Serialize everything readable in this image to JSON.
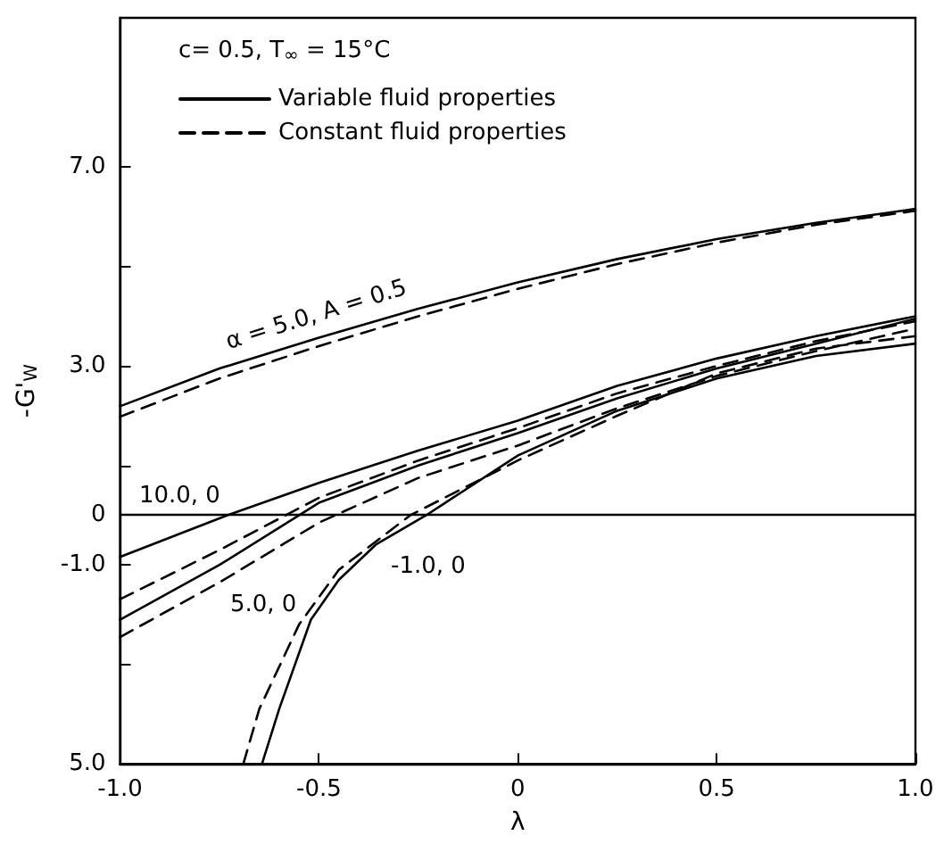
{
  "chart_data": {
    "type": "line",
    "xlabel": "λ",
    "ylabel": "-G'$_{W}$",
    "xlim": [
      -1,
      1
    ],
    "xticks": [
      {
        "value": -1,
        "label": "-1.0"
      },
      {
        "value": -0.5,
        "label": "-0.5"
      },
      0,
      0.5,
      {
        "value": 1,
        "label": "1.0"
      }
    ],
    "ylim": [
      -5,
      10
    ],
    "yticks": [
      {
        "value": 7,
        "label": "7.0"
      },
      {
        "value": 5,
        "label": null
      },
      {
        "value": 3,
        "label": "3.0"
      },
      {
        "value": 1,
        "label": null
      },
      0,
      {
        "value": -1,
        "label": "-1.0"
      },
      {
        "value": -3,
        "label": null
      },
      {
        "value": -5,
        "label": "5.0"
      }
    ],
    "grid": false,
    "legend": "top left",
    "marker": "none",
    "ref_lines": [
      {
        "axis": "y",
        "value": 0,
        "color": "#000000"
      }
    ],
    "annotations": [
      "c= 0.5, T$_{∞}$ = 15°C",
      {
        "text": "α = 5.0, A = 0.5",
        "x": -0.75,
        "y": 2.95
      },
      {
        "text": "10.0, 0",
        "x": -0.73,
        "y": 0
      },
      {
        "text": "5.0, 0",
        "x": -0.75,
        "y": -1.35
      },
      {
        "text": "-1.0, 0",
        "x": -0.355,
        "y": -0.58
      }
    ],
    "series": [
      {
        "name": "Variable fluid properties",
        "color": "#000000",
        "line_style": "solid",
        "x": [
          -1,
          -0.75,
          -0.5,
          -0.25,
          0,
          0.25,
          0.5,
          0.75,
          1
        ],
        "values": [
          2.19,
          2.95,
          3.57,
          4.15,
          4.68,
          5.15,
          5.55,
          5.88,
          6.16
        ]
      },
      {
        "name": "Constant fluid properties",
        "color": "#000000",
        "line_style": "dashed",
        "x": [
          -1,
          -0.75,
          -0.5,
          -0.25,
          0,
          0.25,
          0.5,
          0.75,
          1
        ],
        "values": [
          1.98,
          2.75,
          3.4,
          4.0,
          4.55,
          5.05,
          5.48,
          5.84,
          6.12
        ]
      },
      {
        "color": "#000000",
        "line_style": "solid",
        "x": [
          -1,
          -0.73,
          -0.5,
          -0.25,
          0,
          0.25,
          0.5,
          0.75,
          1
        ],
        "values": [
          -0.84,
          0,
          0.65,
          1.3,
          1.9,
          2.6,
          3.15,
          3.6,
          4.0
        ]
      },
      {
        "color": "#000000",
        "line_style": "dashed",
        "x": [
          -1,
          -0.75,
          -0.5,
          -0.25,
          0,
          0.25,
          0.5,
          0.75,
          1
        ],
        "values": [
          -1.69,
          -0.7,
          0.35,
          1.1,
          1.75,
          2.45,
          3.0,
          3.5,
          3.9
        ]
      },
      {
        "color": "#000000",
        "line_style": "solid",
        "x": [
          -1,
          -0.75,
          -0.5,
          -0.25,
          0,
          0.25,
          0.5,
          0.75,
          1
        ],
        "values": [
          -2.1,
          -1.0,
          0.25,
          1.0,
          1.65,
          2.35,
          2.95,
          3.45,
          3.95
        ]
      },
      {
        "color": "#000000",
        "line_style": "dashed",
        "x": [
          -1,
          -0.75,
          -0.5,
          -0.25,
          0,
          0.25,
          0.5,
          0.75,
          1
        ],
        "values": [
          -2.45,
          -1.35,
          -0.15,
          0.75,
          1.4,
          2.15,
          2.8,
          3.3,
          3.75
        ]
      },
      {
        "color": "#000000",
        "line_style": "solid",
        "x": [
          -0.643,
          -0.6,
          -0.52,
          -0.45,
          -0.355,
          -0.23,
          0,
          0.25,
          0.5,
          0.75,
          1
        ],
        "values": [
          -5,
          -3.9,
          -2.1,
          -1.3,
          -0.58,
          0,
          1.2,
          2.1,
          2.75,
          3.2,
          3.45
        ]
      },
      {
        "color": "#000000",
        "line_style": "dashed",
        "x": [
          -0.69,
          -0.65,
          -0.55,
          -0.45,
          -0.27,
          0,
          0.25,
          0.5,
          0.75,
          1
        ],
        "values": [
          -5,
          -3.9,
          -2.2,
          -1.1,
          0,
          1.1,
          2.0,
          2.85,
          3.35,
          3.6
        ]
      }
    ]
  }
}
